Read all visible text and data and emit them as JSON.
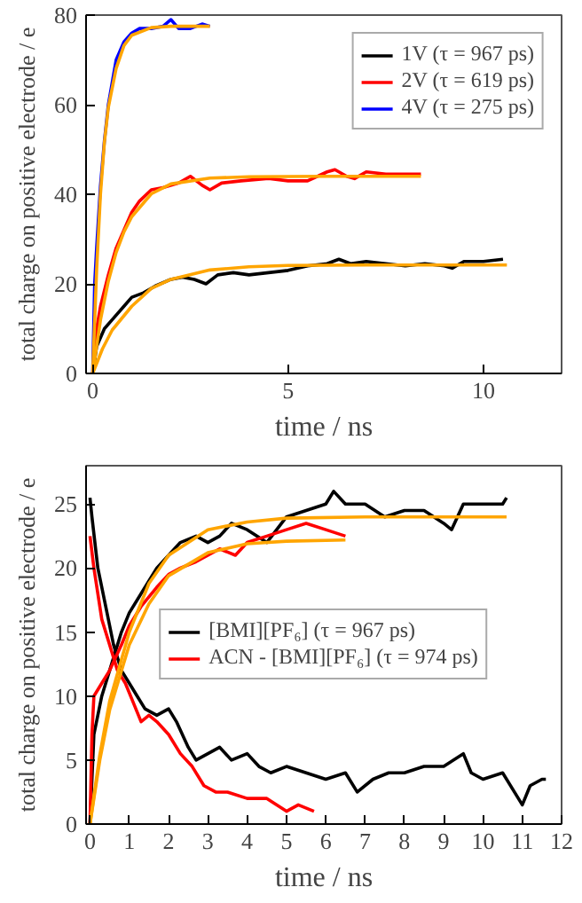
{
  "chart_data": [
    {
      "type": "line",
      "xlabel": "time / ns",
      "ylabel": "total charge on positive electrode / e",
      "xlim": [
        -0.17,
        12
      ],
      "ylim": [
        0,
        80
      ],
      "xticks": [
        0,
        5,
        10
      ],
      "yticks": [
        0,
        20,
        40,
        60,
        80
      ],
      "grid": false,
      "legend": "top right",
      "series": [
        {
          "name": "1V (τ = 967 ps)",
          "color": "#000000",
          "x": [
            0,
            0.1,
            0.3,
            0.5,
            0.8,
            1.0,
            1.3,
            1.6,
            2.0,
            2.3,
            2.6,
            2.9,
            3.2,
            3.6,
            4.0,
            4.5,
            5.0,
            5.5,
            6.0,
            6.3,
            6.6,
            7.0,
            7.5,
            8.0,
            8.5,
            9.0,
            9.2,
            9.5,
            10.0,
            10.5
          ],
          "values": [
            0,
            6,
            10,
            12,
            15,
            17,
            18,
            19.5,
            21,
            21.5,
            21,
            20,
            22,
            22.5,
            22,
            22.5,
            23,
            24,
            24.5,
            25.5,
            24.5,
            25,
            24.5,
            24,
            24.5,
            24,
            23.5,
            25,
            25,
            25.5
          ]
        },
        {
          "name": "2V (τ = 619 ps)",
          "color": "#ff0000",
          "x": [
            0,
            0.1,
            0.2,
            0.4,
            0.6,
            0.8,
            1.0,
            1.2,
            1.5,
            1.8,
            2.2,
            2.5,
            2.8,
            3.0,
            3.3,
            3.8,
            4.5,
            5.0,
            5.5,
            6.0,
            6.2,
            6.5,
            6.7,
            7.0,
            7.5,
            8.0,
            8.4
          ],
          "values": [
            0,
            10,
            15,
            22,
            28,
            32,
            36,
            38.5,
            41,
            41.5,
            42.5,
            44,
            42,
            41,
            42.5,
            43,
            43.5,
            43,
            43,
            45,
            45.5,
            44,
            43.5,
            45,
            44.5,
            44.5,
            44.5
          ]
        },
        {
          "name": "4V (τ = 275 ps)",
          "color": "#0000ff",
          "x": [
            0,
            0.05,
            0.1,
            0.2,
            0.3,
            0.4,
            0.5,
            0.6,
            0.8,
            1.0,
            1.2,
            1.5,
            1.8,
            2.0,
            2.2,
            2.5,
            2.8,
            3.0
          ],
          "values": [
            0,
            20,
            28,
            42,
            52,
            60,
            65,
            70,
            74,
            76,
            77,
            77,
            77.5,
            79,
            77,
            77,
            78,
            77.5
          ]
        },
        {
          "color": "#ffa500",
          "x": [
            0,
            0.25,
            0.5,
            1,
            1.5,
            2,
            3,
            4,
            5,
            7,
            10.6
          ],
          "values": [
            0,
            5.5,
            9.7,
            15.0,
            19.0,
            21.0,
            23.1,
            23.8,
            24.1,
            24.2,
            24.2
          ]
        },
        {
          "color": "#ffa500",
          "x": [
            0,
            0.2,
            0.4,
            0.6,
            0.8,
            1,
            1.5,
            2,
            3,
            4,
            6,
            8.4
          ],
          "values": [
            0,
            12.0,
            20.6,
            27.0,
            31.6,
            35.0,
            40.1,
            42.3,
            43.6,
            43.9,
            44,
            44
          ]
        },
        {
          "color": "#ffa500",
          "x": [
            0,
            0.1,
            0.2,
            0.3,
            0.4,
            0.6,
            0.8,
            1.0,
            1.5,
            2,
            3
          ],
          "values": [
            0,
            23.1,
            40.2,
            51.6,
            59.4,
            68.1,
            73.2,
            75.5,
            77.2,
            77.5,
            77.5
          ]
        }
      ]
    },
    {
      "type": "line",
      "xlabel": "time / ns",
      "ylabel": "total charge on positive electrode / e",
      "xlim": [
        -0.1,
        12
      ],
      "ylim": [
        0,
        28
      ],
      "xticks": [
        0,
        1,
        2,
        3,
        4,
        5,
        6,
        7,
        8,
        9,
        10,
        11,
        12
      ],
      "yticks": [
        0,
        5,
        10,
        15,
        20,
        25
      ],
      "grid": false,
      "legend": "center",
      "series": [
        {
          "name": "[BMI][PF₆] (τ = 967 ps)",
          "color": "#000000",
          "x": [
            0,
            0.1,
            0.3,
            0.5,
            0.8,
            1.0,
            1.3,
            1.7,
            2.0,
            2.3,
            2.7,
            3.0,
            3.3,
            3.6,
            4.0,
            4.5,
            5.0,
            5.5,
            6.0,
            6.2,
            6.5,
            7,
            7.5,
            8,
            8.5,
            9,
            9.2,
            9.5,
            10,
            10.5,
            10.6
          ],
          "values": [
            0,
            7,
            10,
            12,
            15,
            16.5,
            18,
            20,
            21,
            22,
            22.5,
            22,
            22.5,
            23.5,
            23,
            22,
            24,
            24.5,
            25,
            26,
            25,
            25,
            24,
            24.5,
            24.5,
            23.5,
            23,
            25,
            25,
            25,
            25.5
          ]
        },
        {
          "color": "#000000",
          "x": [
            0,
            0.05,
            0.2,
            0.4,
            0.6,
            0.8,
            1.0,
            1.2,
            1.4,
            1.7,
            2.0,
            2.2,
            2.5,
            2.7,
            3.0,
            3.3,
            3.6,
            4.0,
            4.3,
            4.6,
            5,
            5.5,
            6,
            6.5,
            6.8,
            7.2,
            7.6,
            8,
            8.5,
            9,
            9.5,
            9.7,
            10,
            10.5,
            10.9,
            11,
            11.2,
            11.5,
            11.6
          ],
          "values": [
            25.5,
            24,
            20,
            17,
            14,
            12,
            11,
            10,
            9,
            8.5,
            9,
            8,
            6,
            5,
            5.5,
            6,
            5,
            5.5,
            4.5,
            4,
            4.5,
            4,
            3.5,
            4,
            2.5,
            3.5,
            4,
            4,
            4.5,
            4.5,
            5.5,
            4,
            3.5,
            4,
            2,
            1.5,
            3,
            3.5,
            3.5
          ]
        },
        {
          "name": "ACN - [BMI][PF₆] (τ = 974 ps)",
          "color": "#ff0000",
          "x": [
            0,
            0.05,
            0.1,
            0.3,
            0.5,
            0.8,
            1.0,
            1.3,
            1.7,
            2.0,
            2.3,
            2.7,
            3.0,
            3.3,
            3.7,
            4.0,
            4.5,
            5,
            5.5,
            6,
            6.5
          ],
          "values": [
            0,
            7,
            10,
            11,
            12,
            14,
            15.5,
            17,
            18.5,
            19.5,
            20,
            20.5,
            21,
            21.5,
            21,
            22,
            22.5,
            23,
            23.5,
            23,
            22.5
          ]
        },
        {
          "color": "#ff0000",
          "x": [
            0,
            0.1,
            0.3,
            0.5,
            0.7,
            0.9,
            1.1,
            1.3,
            1.5,
            1.7,
            2.0,
            2.3,
            2.6,
            2.9,
            3.2,
            3.5,
            4,
            4.5,
            5,
            5.3,
            5.7
          ],
          "values": [
            22.5,
            20,
            16,
            14,
            12,
            11,
            9.5,
            8,
            8.5,
            8,
            7,
            5.5,
            4.5,
            3,
            2.5,
            2.5,
            2,
            2,
            1,
            1.5,
            1
          ]
        },
        {
          "color": "#ffa500",
          "x": [
            0,
            0.25,
            0.5,
            1,
            1.5,
            2,
            3,
            4,
            5,
            7,
            10.6
          ],
          "values": [
            0,
            5.4,
            9.6,
            15.0,
            18.8,
            21.0,
            23.0,
            23.6,
            23.9,
            24,
            24
          ]
        },
        {
          "color": "#ffa500",
          "x": [
            0,
            0.25,
            0.5,
            1,
            1.5,
            2,
            3,
            4,
            5,
            6.5
          ],
          "values": [
            0,
            5,
            8.9,
            14,
            17.2,
            19.4,
            21.2,
            21.9,
            22.1,
            22.2
          ]
        }
      ]
    }
  ]
}
